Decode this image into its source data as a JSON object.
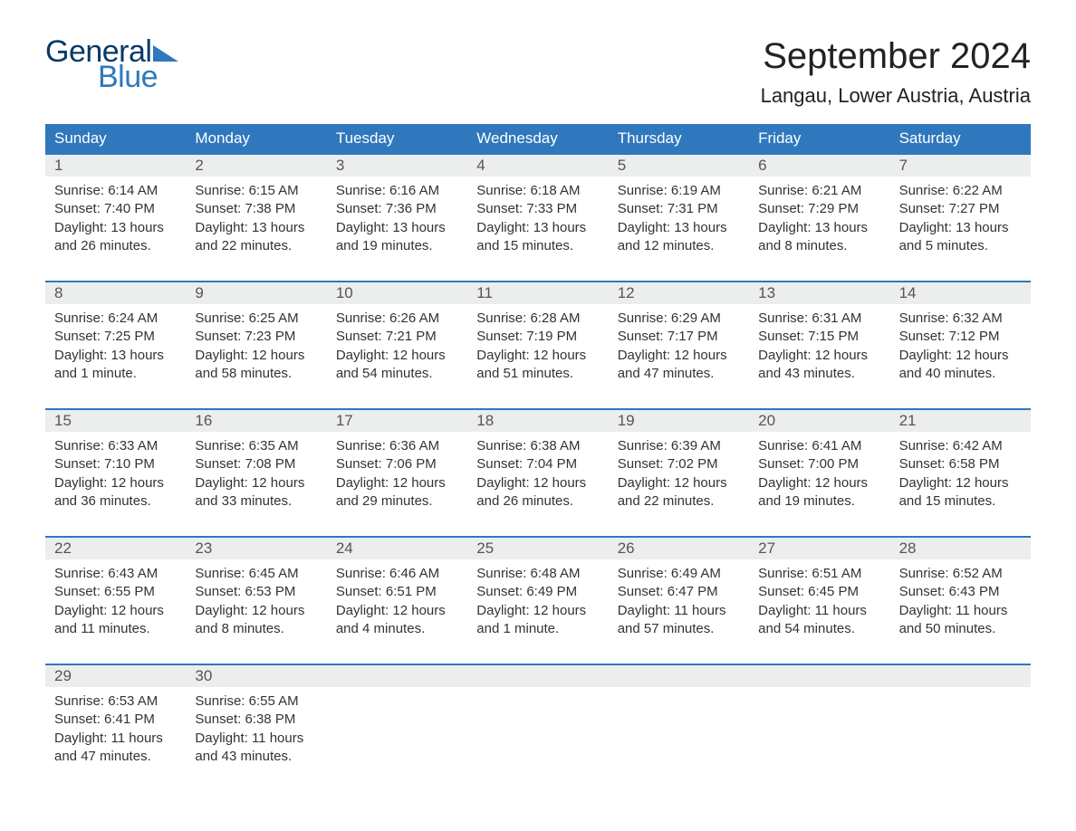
{
  "logo": {
    "word1": "General",
    "word2": "Blue"
  },
  "title": "September 2024",
  "location": "Langau, Lower Austria, Austria",
  "colors": {
    "header_bg": "#2f78bd",
    "daynum_bg": "#eceded",
    "week_border": "#2f78bd",
    "text": "#333333",
    "logo_dark": "#083968",
    "logo_blue": "#2f78bd",
    "page_bg": "#ffffff"
  },
  "typography": {
    "title_fontsize": 40,
    "location_fontsize": 22,
    "dow_fontsize": 17,
    "daynum_fontsize": 17,
    "body_fontsize": 15,
    "logo_fontsize": 34
  },
  "dow": [
    "Sunday",
    "Monday",
    "Tuesday",
    "Wednesday",
    "Thursday",
    "Friday",
    "Saturday"
  ],
  "labels": {
    "sunrise": "Sunrise:",
    "sunset": "Sunset:",
    "daylight": "Daylight:"
  },
  "weeks": [
    [
      {
        "d": "1",
        "sr": "6:14 AM",
        "ss": "7:40 PM",
        "dl": "13 hours and 26 minutes."
      },
      {
        "d": "2",
        "sr": "6:15 AM",
        "ss": "7:38 PM",
        "dl": "13 hours and 22 minutes."
      },
      {
        "d": "3",
        "sr": "6:16 AM",
        "ss": "7:36 PM",
        "dl": "13 hours and 19 minutes."
      },
      {
        "d": "4",
        "sr": "6:18 AM",
        "ss": "7:33 PM",
        "dl": "13 hours and 15 minutes."
      },
      {
        "d": "5",
        "sr": "6:19 AM",
        "ss": "7:31 PM",
        "dl": "13 hours and 12 minutes."
      },
      {
        "d": "6",
        "sr": "6:21 AM",
        "ss": "7:29 PM",
        "dl": "13 hours and 8 minutes."
      },
      {
        "d": "7",
        "sr": "6:22 AM",
        "ss": "7:27 PM",
        "dl": "13 hours and 5 minutes."
      }
    ],
    [
      {
        "d": "8",
        "sr": "6:24 AM",
        "ss": "7:25 PM",
        "dl": "13 hours and 1 minute."
      },
      {
        "d": "9",
        "sr": "6:25 AM",
        "ss": "7:23 PM",
        "dl": "12 hours and 58 minutes."
      },
      {
        "d": "10",
        "sr": "6:26 AM",
        "ss": "7:21 PM",
        "dl": "12 hours and 54 minutes."
      },
      {
        "d": "11",
        "sr": "6:28 AM",
        "ss": "7:19 PM",
        "dl": "12 hours and 51 minutes."
      },
      {
        "d": "12",
        "sr": "6:29 AM",
        "ss": "7:17 PM",
        "dl": "12 hours and 47 minutes."
      },
      {
        "d": "13",
        "sr": "6:31 AM",
        "ss": "7:15 PM",
        "dl": "12 hours and 43 minutes."
      },
      {
        "d": "14",
        "sr": "6:32 AM",
        "ss": "7:12 PM",
        "dl": "12 hours and 40 minutes."
      }
    ],
    [
      {
        "d": "15",
        "sr": "6:33 AM",
        "ss": "7:10 PM",
        "dl": "12 hours and 36 minutes."
      },
      {
        "d": "16",
        "sr": "6:35 AM",
        "ss": "7:08 PM",
        "dl": "12 hours and 33 minutes."
      },
      {
        "d": "17",
        "sr": "6:36 AM",
        "ss": "7:06 PM",
        "dl": "12 hours and 29 minutes."
      },
      {
        "d": "18",
        "sr": "6:38 AM",
        "ss": "7:04 PM",
        "dl": "12 hours and 26 minutes."
      },
      {
        "d": "19",
        "sr": "6:39 AM",
        "ss": "7:02 PM",
        "dl": "12 hours and 22 minutes."
      },
      {
        "d": "20",
        "sr": "6:41 AM",
        "ss": "7:00 PM",
        "dl": "12 hours and 19 minutes."
      },
      {
        "d": "21",
        "sr": "6:42 AM",
        "ss": "6:58 PM",
        "dl": "12 hours and 15 minutes."
      }
    ],
    [
      {
        "d": "22",
        "sr": "6:43 AM",
        "ss": "6:55 PM",
        "dl": "12 hours and 11 minutes."
      },
      {
        "d": "23",
        "sr": "6:45 AM",
        "ss": "6:53 PM",
        "dl": "12 hours and 8 minutes."
      },
      {
        "d": "24",
        "sr": "6:46 AM",
        "ss": "6:51 PM",
        "dl": "12 hours and 4 minutes."
      },
      {
        "d": "25",
        "sr": "6:48 AM",
        "ss": "6:49 PM",
        "dl": "12 hours and 1 minute."
      },
      {
        "d": "26",
        "sr": "6:49 AM",
        "ss": "6:47 PM",
        "dl": "11 hours and 57 minutes."
      },
      {
        "d": "27",
        "sr": "6:51 AM",
        "ss": "6:45 PM",
        "dl": "11 hours and 54 minutes."
      },
      {
        "d": "28",
        "sr": "6:52 AM",
        "ss": "6:43 PM",
        "dl": "11 hours and 50 minutes."
      }
    ],
    [
      {
        "d": "29",
        "sr": "6:53 AM",
        "ss": "6:41 PM",
        "dl": "11 hours and 47 minutes."
      },
      {
        "d": "30",
        "sr": "6:55 AM",
        "ss": "6:38 PM",
        "dl": "11 hours and 43 minutes."
      },
      null,
      null,
      null,
      null,
      null
    ]
  ]
}
